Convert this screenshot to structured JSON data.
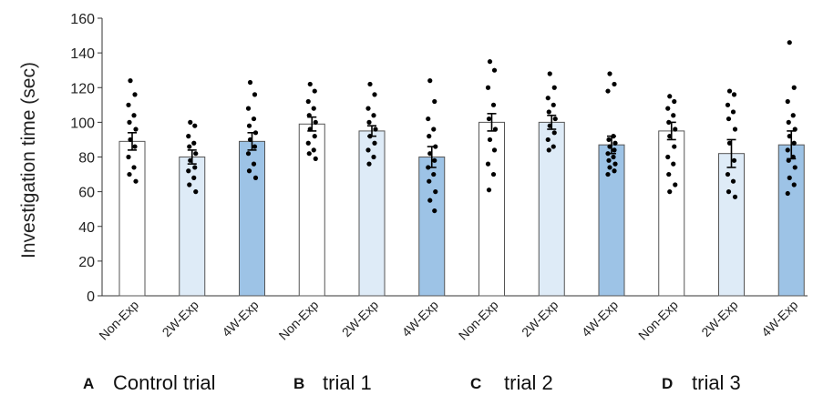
{
  "chart_data": {
    "type": "bar",
    "ylabel": "Investigation time (sec)",
    "ylim": [
      0,
      160
    ],
    "yticks": [
      0,
      20,
      40,
      60,
      80,
      100,
      120,
      140,
      160
    ],
    "grid": false,
    "legend": "none",
    "categories": [
      "Non-Exp",
      "2W-Exp",
      "4W-Exp",
      "Non-Exp",
      "2W-Exp",
      "4W-Exp",
      "Non-Exp",
      "2W-Exp",
      "4W-Exp",
      "Non-Exp",
      "2W-Exp",
      "4W-Exp"
    ],
    "values": [
      89,
      80,
      89,
      99,
      95,
      80,
      100,
      100,
      87,
      95,
      82,
      87
    ],
    "errors": [
      5,
      4,
      5,
      4,
      3,
      6,
      5,
      4,
      5,
      5,
      8,
      8
    ],
    "bar_colors": [
      "#ffffff",
      "#deebf7",
      "#9dc3e6",
      "#ffffff",
      "#deebf7",
      "#9dc3e6",
      "#ffffff",
      "#deebf7",
      "#9dc3e6",
      "#ffffff",
      "#deebf7",
      "#9dc3e6"
    ],
    "points": [
      [
        124,
        116,
        110,
        104,
        100,
        96,
        90,
        86,
        80,
        74,
        70,
        66
      ],
      [
        100,
        98,
        92,
        88,
        86,
        82,
        78,
        74,
        72,
        68,
        64,
        60
      ],
      [
        123,
        116,
        108,
        102,
        98,
        94,
        90,
        86,
        82,
        76,
        72,
        68
      ],
      [
        122,
        118,
        112,
        108,
        104,
        100,
        96,
        92,
        88,
        84,
        82,
        79
      ],
      [
        122,
        116,
        108,
        104,
        100,
        96,
        92,
        88,
        84,
        80,
        76
      ],
      [
        124,
        112,
        102,
        96,
        92,
        86,
        82,
        78,
        74,
        70,
        66,
        60,
        55,
        49
      ],
      [
        135,
        130,
        120,
        110,
        102,
        96,
        90,
        84,
        76,
        70,
        61
      ],
      [
        128,
        120,
        114,
        110,
        106,
        102,
        98,
        94,
        90,
        86,
        84
      ],
      [
        128,
        122,
        118,
        92,
        90,
        88,
        86,
        84,
        82,
        80,
        78,
        76,
        74,
        72,
        70
      ],
      [
        115,
        112,
        108,
        104,
        100,
        96,
        92,
        86,
        80,
        76,
        70,
        64,
        60
      ],
      [
        118,
        116,
        110,
        106,
        102,
        96,
        88,
        78,
        70,
        66,
        60,
        57
      ],
      [
        146,
        120,
        112,
        104,
        100,
        96,
        92,
        88,
        84,
        80,
        78,
        74,
        68,
        64,
        59
      ]
    ],
    "panels": [
      {
        "letter": "A",
        "title": "Control trial"
      },
      {
        "letter": "B",
        "title": "trial 1"
      },
      {
        "letter": "C",
        "title": "trial 2"
      },
      {
        "letter": "D",
        "title": "trial 3"
      }
    ]
  }
}
